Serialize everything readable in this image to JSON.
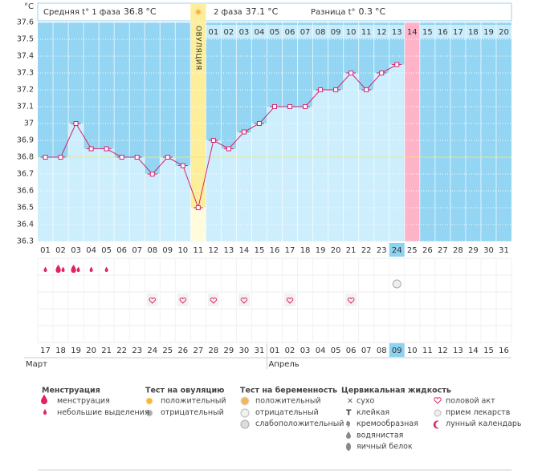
{
  "header": {
    "unit": "°C",
    "phase1_label": "Средняя t° 1 фаза",
    "phase1_value": 36.8,
    "phase2_label": "2 фаза",
    "phase2_value": 37.1,
    "diff_label": "Разница t°",
    "diff_value": 0.3
  },
  "chart_data": {
    "type": "line",
    "color": "#d6246e",
    "categories": [
      "01",
      "02",
      "03",
      "04",
      "05",
      "06",
      "07",
      "08",
      "09",
      "10",
      "11",
      "12",
      "13",
      "14",
      "15",
      "16",
      "17",
      "18",
      "19",
      "20",
      "21",
      "22",
      "23",
      "24",
      "25",
      "26",
      "27",
      "28",
      "29",
      "30",
      "31"
    ],
    "values": [
      36.8,
      36.8,
      37.0,
      36.85,
      36.85,
      36.8,
      36.8,
      36.7,
      36.8,
      36.75,
      36.5,
      36.9,
      36.85,
      36.95,
      37.0,
      37.1,
      37.1,
      37.1,
      37.2,
      37.2,
      37.3,
      37.2,
      37.3,
      37.35,
      null,
      null,
      null,
      null,
      null,
      null,
      null
    ],
    "ylim": [
      36.3,
      37.6
    ],
    "yticks": [
      36.3,
      36.4,
      36.5,
      36.6,
      36.7,
      36.8,
      36.9,
      37,
      37.1,
      37.2,
      37.3,
      37.4,
      37.5,
      37.6
    ],
    "grid": true,
    "coverline": 36.8,
    "phase2_labels": [
      null,
      null,
      null,
      null,
      null,
      null,
      null,
      null,
      null,
      null,
      null,
      "01",
      "02",
      "03",
      "04",
      "05",
      "06",
      "07",
      "08",
      "09",
      "10",
      "11",
      "12",
      "13",
      "14",
      "15",
      "16",
      "17",
      "18",
      "19",
      "20"
    ],
    "ovulation": {
      "label": "ОВУЛЯЦИЯ",
      "category": "11"
    },
    "expected_period_category": "25",
    "today_category": "24",
    "dates": [
      {
        "label": "17",
        "red": true
      },
      {
        "label": "18",
        "red": false
      },
      {
        "label": "19",
        "red": false
      },
      {
        "label": "20",
        "red": false
      },
      {
        "label": "21",
        "red": false
      },
      {
        "label": "22",
        "red": false
      },
      {
        "label": "23",
        "red": true
      },
      {
        "label": "24",
        "red": true
      },
      {
        "label": "25",
        "red": false
      },
      {
        "label": "26",
        "red": false
      },
      {
        "label": "27",
        "red": false
      },
      {
        "label": "28",
        "red": false
      },
      {
        "label": "29",
        "red": false
      },
      {
        "label": "30",
        "red": true
      },
      {
        "label": "31",
        "red": true
      },
      {
        "label": "01",
        "red": false
      },
      {
        "label": "02",
        "red": false
      },
      {
        "label": "03",
        "red": false
      },
      {
        "label": "04",
        "red": false
      },
      {
        "label": "05",
        "red": false
      },
      {
        "label": "06",
        "red": true
      },
      {
        "label": "07",
        "red": true
      },
      {
        "label": "08",
        "red": false
      },
      {
        "label": "09",
        "red": false
      },
      {
        "label": "10",
        "red": false
      },
      {
        "label": "11",
        "red": false
      },
      {
        "label": "12",
        "red": false
      },
      {
        "label": "13",
        "red": true
      },
      {
        "label": "14",
        "red": true
      },
      {
        "label": "15",
        "red": false
      },
      {
        "label": "16",
        "red": false
      }
    ],
    "months": [
      {
        "label": "Март",
        "category": "01"
      },
      {
        "label": "Апрель",
        "category": "16"
      }
    ],
    "menstruation": [
      {
        "category": "01",
        "drops": [
          "light"
        ]
      },
      {
        "category": "02",
        "drops": [
          "heavy",
          "light"
        ]
      },
      {
        "category": "03",
        "drops": [
          "heavy",
          "light"
        ]
      },
      {
        "category": "04",
        "drops": [
          "light"
        ]
      },
      {
        "category": "05",
        "drops": [
          "light"
        ]
      }
    ],
    "pregnancy_test": [
      {
        "category": "24",
        "result": "weak"
      }
    ],
    "intercourse": [
      "08",
      "10",
      "12",
      "14",
      "17",
      "21"
    ]
  },
  "legend": {
    "groups": [
      {
        "title": "Менструация",
        "items": [
          "менструация",
          "небольшие выделения"
        ]
      },
      {
        "title": "Тест на овуляцию",
        "items": [
          "положительный",
          "отрицательный"
        ]
      },
      {
        "title": "Тест на беременность",
        "items": [
          "положительный",
          "отрицательный",
          "слабоположительный"
        ]
      },
      {
        "title": "Цервикальная жидкость",
        "items": [
          "сухо",
          "клейкая",
          "кремообразная",
          "водянистая",
          "яичный белок"
        ]
      }
    ],
    "extra_items": [
      "половой акт",
      "прием лекарств",
      "лунный календарь"
    ]
  }
}
